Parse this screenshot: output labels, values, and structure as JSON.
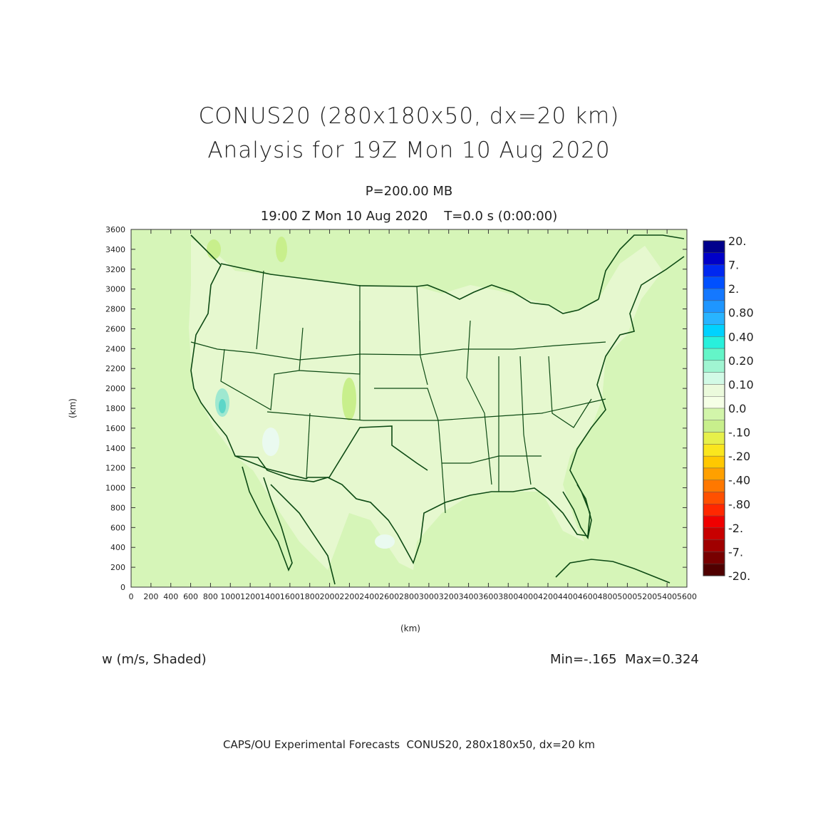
{
  "header": {
    "title_line1": "CONUS20 (280x180x50, dx=20 km)",
    "title_line2": "Analysis for 19Z Mon 10 Aug 2020",
    "level": "P=200.00 MB",
    "valid_time": "19:00 Z Mon 10 Aug 2020    T=0.0 s (0:00:00)"
  },
  "map": {
    "x_axis_label": "(km)",
    "y_axis_label": "(km)",
    "x_range": [
      0,
      5600
    ],
    "y_range": [
      0,
      3600
    ],
    "x_ticks": [
      0,
      200,
      400,
      600,
      800,
      1000,
      1200,
      1400,
      1600,
      1800,
      2000,
      2200,
      2400,
      2600,
      2800,
      3000,
      3200,
      3400,
      3600,
      3800,
      4000,
      4200,
      4400,
      4600,
      4800,
      5000,
      5200,
      5400,
      5600
    ],
    "y_ticks": [
      0,
      200,
      400,
      600,
      800,
      1000,
      1200,
      1400,
      1600,
      1800,
      2000,
      2200,
      2400,
      2600,
      2800,
      3000,
      3200,
      3400,
      3600
    ],
    "background_color": "#d6f5b8",
    "outline_color": "#0d4a14",
    "field_min": -0.165,
    "field_max": 0.324
  },
  "colorbar": {
    "labels": [
      "20.",
      "7.",
      "2.",
      "0.80",
      "0.40",
      "0.20",
      "0.10",
      "0.0",
      "-.10",
      "-.20",
      "-.40",
      "-.80",
      "-2.",
      "-7.",
      "-20."
    ],
    "colors": [
      "#00008c",
      "#0000c8",
      "#0028f0",
      "#0050ff",
      "#1478ff",
      "#1e96ff",
      "#28b4ff",
      "#00d2ff",
      "#28f0dc",
      "#64f5c8",
      "#a0f5d2",
      "#d2fae6",
      "#ebfadc",
      "#f5ffe6",
      "#d2f5aa",
      "#c8ef8c",
      "#e6f04b",
      "#fae61e",
      "#ffc800",
      "#ffa000",
      "#ff7800",
      "#ff5000",
      "#ff2800",
      "#f00000",
      "#c80000",
      "#a00000",
      "#780000",
      "#500000"
    ]
  },
  "footer": {
    "variable_label": "w (m/s, Shaded)",
    "minmax": "Min=-.165  Max=0.324",
    "credit": "CAPS/OU Experimental Forecasts  CONUS20, 280x180x50, dx=20 km"
  }
}
